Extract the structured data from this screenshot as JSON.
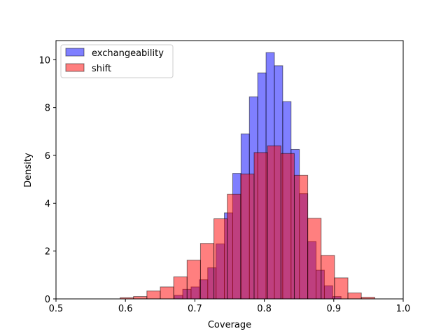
{
  "chart_data": {
    "type": "histogram",
    "xlabel": "Coverage",
    "ylabel": "Density",
    "xlim": [
      0.5,
      1.0
    ],
    "ylim": [
      0,
      10.8
    ],
    "xticks": [
      "0.5",
      "0.6",
      "0.7",
      "0.8",
      "0.9",
      "1.0"
    ],
    "yticks": [
      "0",
      "2",
      "4",
      "6",
      "8",
      "10"
    ],
    "grid": false,
    "legend_position": "top-left",
    "series": [
      {
        "name": "exchangeability",
        "color": "#0000ff",
        "alpha": 0.5,
        "bins": [
          {
            "x0": 0.6705,
            "x1": 0.6825,
            "value": 0.15
          },
          {
            "x0": 0.6825,
            "x1": 0.6945,
            "value": 0.4
          },
          {
            "x0": 0.6945,
            "x1": 0.7065,
            "value": 0.5
          },
          {
            "x0": 0.7065,
            "x1": 0.7185,
            "value": 0.8
          },
          {
            "x0": 0.7185,
            "x1": 0.7305,
            "value": 1.3
          },
          {
            "x0": 0.7305,
            "x1": 0.7425,
            "value": 2.3
          },
          {
            "x0": 0.7425,
            "x1": 0.7545,
            "value": 3.6
          },
          {
            "x0": 0.7545,
            "x1": 0.7665,
            "value": 5.25
          },
          {
            "x0": 0.7665,
            "x1": 0.7785,
            "value": 6.9
          },
          {
            "x0": 0.7785,
            "x1": 0.7905,
            "value": 8.45
          },
          {
            "x0": 0.7905,
            "x1": 0.8025,
            "value": 9.45
          },
          {
            "x0": 0.8025,
            "x1": 0.8145,
            "value": 10.3
          },
          {
            "x0": 0.8145,
            "x1": 0.8265,
            "value": 9.75
          },
          {
            "x0": 0.8265,
            "x1": 0.8385,
            "value": 8.25
          },
          {
            "x0": 0.8385,
            "x1": 0.8505,
            "value": 6.25
          },
          {
            "x0": 0.8505,
            "x1": 0.8625,
            "value": 4.4
          },
          {
            "x0": 0.8625,
            "x1": 0.8745,
            "value": 2.4
          },
          {
            "x0": 0.8745,
            "x1": 0.8865,
            "value": 1.2
          },
          {
            "x0": 0.8865,
            "x1": 0.8985,
            "value": 0.55
          },
          {
            "x0": 0.8985,
            "x1": 0.9105,
            "value": 0.1
          }
        ]
      },
      {
        "name": "shift",
        "color": "#ff0000",
        "alpha": 0.5,
        "bins": [
          {
            "x0": 0.5923,
            "x1": 0.6116,
            "value": 0.05
          },
          {
            "x0": 0.6116,
            "x1": 0.6309,
            "value": 0.1
          },
          {
            "x0": 0.6309,
            "x1": 0.6502,
            "value": 0.33
          },
          {
            "x0": 0.6502,
            "x1": 0.6695,
            "value": 0.5
          },
          {
            "x0": 0.6695,
            "x1": 0.6888,
            "value": 0.92
          },
          {
            "x0": 0.6888,
            "x1": 0.7081,
            "value": 1.62
          },
          {
            "x0": 0.7081,
            "x1": 0.7274,
            "value": 2.32
          },
          {
            "x0": 0.7274,
            "x1": 0.7467,
            "value": 3.35
          },
          {
            "x0": 0.7467,
            "x1": 0.766,
            "value": 4.38
          },
          {
            "x0": 0.766,
            "x1": 0.7853,
            "value": 5.22
          },
          {
            "x0": 0.7853,
            "x1": 0.8046,
            "value": 6.12
          },
          {
            "x0": 0.8046,
            "x1": 0.8239,
            "value": 6.4
          },
          {
            "x0": 0.8239,
            "x1": 0.8432,
            "value": 6.08
          },
          {
            "x0": 0.8432,
            "x1": 0.8625,
            "value": 5.17
          },
          {
            "x0": 0.8625,
            "x1": 0.8818,
            "value": 3.37
          },
          {
            "x0": 0.8818,
            "x1": 0.9011,
            "value": 1.82
          },
          {
            "x0": 0.9011,
            "x1": 0.9204,
            "value": 0.88
          },
          {
            "x0": 0.9204,
            "x1": 0.9397,
            "value": 0.25
          },
          {
            "x0": 0.9397,
            "x1": 0.959,
            "value": 0.07
          }
        ]
      }
    ]
  }
}
